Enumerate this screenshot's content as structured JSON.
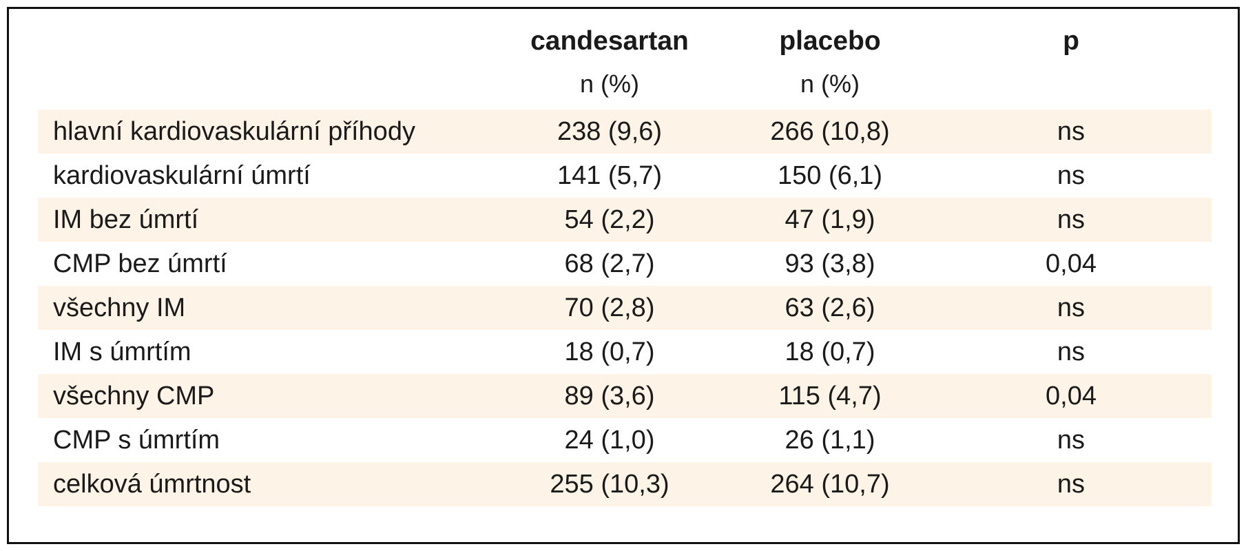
{
  "table": {
    "columns": [
      {
        "title": "candesartan",
        "subtitle": "n (%)"
      },
      {
        "title": "placebo",
        "subtitle": "n (%)"
      },
      {
        "title": "p",
        "subtitle": ""
      }
    ],
    "rows": [
      {
        "label": "hlavní kardiovaskulární příhody",
        "candesartan": "238 (9,6)",
        "placebo": "266 (10,8)",
        "p": "ns"
      },
      {
        "label": "kardiovaskulární úmrtí",
        "candesartan": "141 (5,7)",
        "placebo": "150 (6,1)",
        "p": "ns"
      },
      {
        "label": "IM bez úmrtí",
        "candesartan": "54 (2,2)",
        "placebo": "47 (1,9)",
        "p": "ns"
      },
      {
        "label": "CMP bez úmrtí",
        "candesartan": "68 (2,7)",
        "placebo": "93 (3,8)",
        "p": "0,04"
      },
      {
        "label": "všechny IM",
        "candesartan": "70 (2,8)",
        "placebo": "63 (2,6)",
        "p": "ns"
      },
      {
        "label": "IM s úmrtím",
        "candesartan": "18 (0,7)",
        "placebo": "18 (0,7)",
        "p": "ns"
      },
      {
        "label": "všechny CMP",
        "candesartan": "89 (3,6)",
        "placebo": "115 (4,7)",
        "p": "0,04"
      },
      {
        "label": "CMP s úmrtím",
        "candesartan": "24 (1,0)",
        "placebo": "26 (1,1)",
        "p": "ns"
      },
      {
        "label": "celková úmrtnost",
        "candesartan": "255 (10,3)",
        "placebo": "264 (10,7)",
        "p": "ns"
      }
    ]
  },
  "colors": {
    "row_shade": "#fdf3e7",
    "border": "#111111",
    "text": "#1a1a1a"
  }
}
